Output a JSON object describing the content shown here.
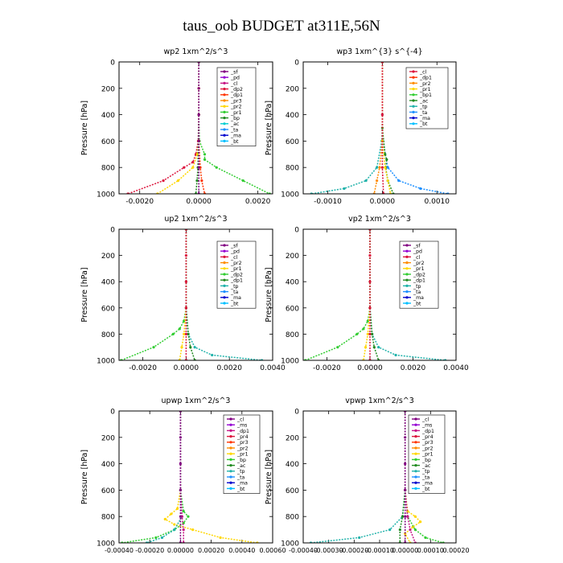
{
  "figure": {
    "title": "taus_oob  BUDGET at311E,56N"
  },
  "chart_data": [
    {
      "type": "line",
      "title": "wp2   1xm^2/s^3",
      "ylabel": "Pressure  [hPa]",
      "xlim": [
        -0.0027,
        0.0025
      ],
      "ylim": [
        1000,
        0
      ],
      "xticks": [
        "-0.0020",
        "0.0000",
        "0.0020"
      ],
      "yticks": [
        "0",
        "200",
        "400",
        "600",
        "800",
        "1000"
      ],
      "legend": [
        "_sf",
        "_pd",
        "_cl",
        "_dp2",
        "_dp1",
        "_pr3",
        "_pr2",
        "_pr1",
        "_bp",
        "_ac",
        "_ta",
        "_ma",
        "_bt"
      ],
      "legend_colors": [
        "#800080",
        "#9400D3",
        "#C71585",
        "#DC143C",
        "#FF3300",
        "#FF8C00",
        "#FFD700",
        "#32CD32",
        "#228B22",
        "#00CED1",
        "#1E90FF",
        "#0000CD",
        "#00BFFF"
      ],
      "series": [
        {
          "name": "_pr1",
          "color": "#32CD32",
          "y": [
            0,
            200,
            400,
            600,
            700,
            740,
            800,
            900,
            1000
          ],
          "x": [
            0,
            0,
            0,
            2e-05,
            0.0002,
            0.0002,
            0.0006,
            0.0015,
            0.0024
          ]
        },
        {
          "name": "_dp2",
          "color": "#DC143C",
          "y": [
            0,
            200,
            400,
            600,
            700,
            760,
            800,
            900,
            1000
          ],
          "x": [
            0,
            0,
            0,
            -2e-05,
            -0.0001,
            -0.0002,
            -0.0005,
            -0.0012,
            -0.0024
          ]
        },
        {
          "name": "_pr2",
          "color": "#FFD700",
          "y": [
            0,
            200,
            400,
            600,
            700,
            800,
            900,
            1000
          ],
          "x": [
            0,
            0,
            0,
            0,
            -5e-05,
            -0.0002,
            -0.0007,
            -0.0014
          ]
        },
        {
          "name": "_dp1",
          "color": "#FF3300",
          "y": [
            0,
            200,
            400,
            600,
            800,
            900,
            1000
          ],
          "x": [
            0,
            0,
            0,
            0,
            5e-05,
            0.0001,
            0.0002
          ]
        },
        {
          "name": "_bp",
          "color": "#228B22",
          "y": [
            0,
            400,
            800,
            900,
            1000
          ],
          "x": [
            0,
            0,
            -3e-05,
            -6e-05,
            -0.0001
          ]
        },
        {
          "name": "_sf",
          "color": "#800080",
          "y": [
            0,
            200,
            400,
            600,
            800,
            1000
          ],
          "x": [
            0,
            0,
            0,
            0,
            0,
            0
          ]
        }
      ]
    },
    {
      "type": "line",
      "title": "wp3   1xm^{3} s^{-4}",
      "ylabel": "Pressure  [hPa]",
      "xlim": [
        -0.00145,
        0.00135
      ],
      "ylim": [
        1000,
        0
      ],
      "xticks": [
        "-0.0010",
        "0.0000",
        "0.0010"
      ],
      "yticks": [
        "0",
        "200",
        "400",
        "600",
        "800",
        "1000"
      ],
      "legend": [
        "_cl",
        "_dp1",
        "_pr2",
        "_pr1",
        "_bp1",
        "_ac",
        "_tp",
        "_ta",
        "_ma",
        "_bt"
      ],
      "legend_colors": [
        "#DC143C",
        "#FF3300",
        "#FF8C00",
        "#FFD700",
        "#32CD32",
        "#228B22",
        "#20B2AA",
        "#1E90FF",
        "#0000CD",
        "#00BFFF"
      ],
      "series": [
        {
          "name": "_ta",
          "color": "#1E90FF",
          "y": [
            0,
            400,
            600,
            800,
            900,
            960,
            1000
          ],
          "x": [
            0,
            0,
            1e-05,
            0.0001,
            0.0003,
            0.0007,
            0.0012
          ]
        },
        {
          "name": "_tp",
          "color": "#20B2AA",
          "y": [
            0,
            400,
            600,
            800,
            900,
            960,
            1000
          ],
          "x": [
            0,
            0,
            -1e-05,
            -0.0001,
            -0.0003,
            -0.0007,
            -0.0013
          ]
        },
        {
          "name": "_ac",
          "color": "#228B22",
          "y": [
            0,
            500,
            700,
            740,
            800,
            900,
            1000
          ],
          "x": [
            0,
            0,
            5e-05,
            8e-05,
            6e-05,
            0.0001,
            0.0002
          ]
        },
        {
          "name": "_pr2",
          "color": "#FF8C00",
          "y": [
            0,
            600,
            800,
            900,
            1000
          ],
          "x": [
            0,
            0,
            -5e-05,
            -0.0001,
            -0.00015
          ]
        },
        {
          "name": "_pr1",
          "color": "#FFD700",
          "y": [
            0,
            600,
            800,
            900,
            1000
          ],
          "x": [
            0,
            0,
            5e-05,
            0.0001,
            0.00015
          ]
        },
        {
          "name": "_cl",
          "color": "#DC143C",
          "y": [
            0,
            400,
            800,
            1000
          ],
          "x": [
            0,
            0,
            0,
            2e-05
          ]
        }
      ]
    },
    {
      "type": "line",
      "title": "up2   1xm^2/s^3",
      "ylabel": "Pressure  [hPa]",
      "xlim": [
        -0.0031,
        0.004
      ],
      "ylim": [
        1000,
        0
      ],
      "xticks": [
        "-0.0020",
        "0.0000",
        "0.0020",
        "0.0040"
      ],
      "yticks": [
        "0",
        "200",
        "400",
        "600",
        "800",
        "1000"
      ],
      "legend": [
        "_sf",
        "_pd",
        "_cl",
        "_pr2",
        "_pr1",
        "_dp2",
        "_dp1",
        "_tp",
        "_ta",
        "_ma",
        "_bt"
      ],
      "legend_colors": [
        "#800080",
        "#9400D3",
        "#DC143C",
        "#FF8C00",
        "#FFD700",
        "#32CD32",
        "#228B22",
        "#20B2AA",
        "#1E90FF",
        "#0000CD",
        "#00BFFF"
      ],
      "series": [
        {
          "name": "_dp2",
          "color": "#32CD32",
          "y": [
            0,
            400,
            600,
            700,
            760,
            800,
            900,
            1000
          ],
          "x": [
            0,
            0,
            0,
            -0.0001,
            -0.0003,
            -0.0006,
            -0.0015,
            -0.003
          ]
        },
        {
          "name": "_ta",
          "color": "#20B2AA",
          "y": [
            0,
            600,
            800,
            900,
            960,
            1000
          ],
          "x": [
            0,
            0,
            0.0001,
            0.0004,
            0.0012,
            0.0035
          ]
        },
        {
          "name": "_pr1",
          "color": "#FFD700",
          "y": [
            0,
            600,
            800,
            900,
            1000
          ],
          "x": [
            0,
            0,
            -0.0001,
            -0.0002,
            -0.0003
          ]
        },
        {
          "name": "_dp1",
          "color": "#228B22",
          "y": [
            0,
            600,
            800,
            900,
            1000
          ],
          "x": [
            0,
            0,
            0.0001,
            0.0002,
            0.0004
          ]
        },
        {
          "name": "_cl",
          "color": "#DC143C",
          "y": [
            0,
            200,
            400,
            600,
            800,
            1000
          ],
          "x": [
            0,
            0,
            0,
            0,
            0,
            0
          ]
        }
      ]
    },
    {
      "type": "line",
      "title": "vp2   1xm^2/s^3",
      "ylabel": "Pressure  [hPa]",
      "xlim": [
        -0.0031,
        0.004
      ],
      "ylim": [
        1000,
        0
      ],
      "xticks": [
        "-0.0020",
        "0.0000",
        "0.0020",
        "0.0040"
      ],
      "yticks": [
        "0",
        "200",
        "400",
        "600",
        "800",
        "1000"
      ],
      "legend": [
        "_sf",
        "_pd",
        "_cl",
        "_pr2",
        "_pr1",
        "_dp2",
        "_dp1",
        "_tp",
        "_ta",
        "_ma",
        "_bt"
      ],
      "legend_colors": [
        "#800080",
        "#9400D3",
        "#DC143C",
        "#FF8C00",
        "#FFD700",
        "#32CD32",
        "#228B22",
        "#20B2AA",
        "#1E90FF",
        "#0000CD",
        "#00BFFF"
      ],
      "series": [
        {
          "name": "_dp2",
          "color": "#32CD32",
          "y": [
            0,
            400,
            600,
            700,
            760,
            800,
            900,
            1000
          ],
          "x": [
            0,
            0,
            0,
            -0.0001,
            -0.0003,
            -0.0006,
            -0.0015,
            -0.003
          ]
        },
        {
          "name": "_ta",
          "color": "#20B2AA",
          "y": [
            0,
            600,
            800,
            900,
            960,
            1000
          ],
          "x": [
            0,
            0,
            0.0001,
            0.0004,
            0.0012,
            0.0035
          ]
        },
        {
          "name": "_pr1",
          "color": "#FFD700",
          "y": [
            0,
            600,
            800,
            900,
            1000
          ],
          "x": [
            0,
            0,
            -0.0001,
            -0.0002,
            -0.0003
          ]
        },
        {
          "name": "_dp1",
          "color": "#228B22",
          "y": [
            0,
            600,
            800,
            900,
            1000
          ],
          "x": [
            0,
            0,
            0.0001,
            0.0002,
            0.0004
          ]
        },
        {
          "name": "_cl",
          "color": "#DC143C",
          "y": [
            0,
            200,
            400,
            600,
            800,
            1000
          ],
          "x": [
            0,
            0,
            0,
            0,
            0,
            0
          ]
        }
      ]
    },
    {
      "type": "line",
      "title": "upwp   1xm^2/s^3",
      "ylabel": "Pressure  [hPa]",
      "xlim": [
        -0.0004,
        0.0006
      ],
      "ylim": [
        1000,
        0
      ],
      "xticks": [
        "-0.00040",
        "-0.00020",
        "0.00000",
        "0.00020",
        "0.00040",
        "0.00060"
      ],
      "yticks": [
        "0",
        "200",
        "400",
        "600",
        "800",
        "1000"
      ],
      "legend": [
        "_cl",
        "_ms",
        "_dp1",
        "_pr4",
        "_pr3",
        "_pr2",
        "_pr1",
        "_bp",
        "_ac",
        "_tp",
        "_ta",
        "_ma",
        "_bt"
      ],
      "legend_colors": [
        "#800080",
        "#9400D3",
        "#C71585",
        "#DC143C",
        "#FF3300",
        "#FF8C00",
        "#FFD700",
        "#32CD32",
        "#228B22",
        "#20B2AA",
        "#1E90FF",
        "#0000CD",
        "#00BFFF"
      ],
      "series": [
        {
          "name": "_pr2",
          "color": "#FFD700",
          "y": [
            0,
            600,
            740,
            780,
            820,
            860,
            900,
            960,
            1000
          ],
          "x": [
            0,
            0,
            -2e-05,
            -6e-05,
            -0.0001,
            -4e-05,
            8e-05,
            0.00026,
            0.0005
          ]
        },
        {
          "name": "_pr1",
          "color": "#32CD32",
          "y": [
            0,
            600,
            760,
            800,
            850,
            900,
            960,
            1000
          ],
          "x": [
            0,
            0,
            2e-05,
            5e-05,
            2e-05,
            -4e-05,
            -0.00016,
            -0.00038
          ]
        },
        {
          "name": "_tp",
          "color": "#20B2AA",
          "y": [
            0,
            600,
            800,
            900,
            960,
            1000
          ],
          "x": [
            0,
            0,
            1e-05,
            -4e-05,
            -0.00012,
            -0.00022
          ]
        },
        {
          "name": "_dp1",
          "color": "#C71585",
          "y": [
            0,
            600,
            800,
            900,
            1000
          ],
          "x": [
            0,
            0,
            1e-05,
            2e-05,
            2e-05
          ]
        },
        {
          "name": "_cl",
          "color": "#800080",
          "y": [
            0,
            200,
            400,
            600,
            800,
            1000
          ],
          "x": [
            0,
            0,
            0,
            0,
            0,
            0
          ]
        }
      ]
    },
    {
      "type": "line",
      "title": "vpwp   1xm^2/s^3",
      "ylabel": "Pressure  [hPa]",
      "xlim": [
        -0.0004,
        0.0002
      ],
      "ylim": [
        1000,
        0
      ],
      "xticks": [
        "-0.00040",
        "-0.00030",
        "-0.00020",
        "-0.00010",
        "0.00000",
        "0.00010",
        "0.00020"
      ],
      "yticks": [
        "0",
        "200",
        "400",
        "600",
        "800",
        "1000"
      ],
      "legend": [
        "_cl",
        "_ms",
        "_dp1",
        "_pr4",
        "_pr3",
        "_pr2",
        "_pr1",
        "_bp",
        "_ac",
        "_tp",
        "_ta",
        "_ma",
        "_bt"
      ],
      "legend_colors": [
        "#800080",
        "#9400D3",
        "#C71585",
        "#DC143C",
        "#FF3300",
        "#FF8C00",
        "#FFD700",
        "#32CD32",
        "#228B22",
        "#20B2AA",
        "#1E90FF",
        "#0000CD",
        "#00BFFF"
      ],
      "series": [
        {
          "name": "_ta",
          "color": "#20B2AA",
          "y": [
            0,
            600,
            800,
            900,
            960,
            1000
          ],
          "x": [
            0,
            0,
            -1e-05,
            -6e-05,
            -0.00018,
            -0.00037
          ]
        },
        {
          "name": "_pr2",
          "color": "#FFD700",
          "y": [
            0,
            600,
            760,
            800,
            840,
            880,
            930,
            1000
          ],
          "x": [
            0,
            0,
            1e-05,
            4e-05,
            6e-05,
            3e-05,
            0,
            2e-05
          ]
        },
        {
          "name": "_pr1",
          "color": "#32CD32",
          "y": [
            0,
            600,
            800,
            900,
            960,
            1000
          ],
          "x": [
            0,
            0,
            1e-05,
            4e-05,
            8e-05,
            0.00015
          ]
        },
        {
          "name": "_tp",
          "color": "#228B22",
          "y": [
            0,
            600,
            800,
            900,
            1000
          ],
          "x": [
            0,
            0,
            -1e-05,
            -2e-05,
            -2e-05
          ]
        },
        {
          "name": "_dp1",
          "color": "#C71585",
          "y": [
            0,
            600,
            800,
            900,
            1000
          ],
          "x": [
            0,
            0,
            1e-05,
            2e-05,
            4e-05
          ]
        },
        {
          "name": "_cl",
          "color": "#800080",
          "y": [
            0,
            200,
            400,
            600,
            800,
            1000
          ],
          "x": [
            0,
            0,
            0,
            0,
            0,
            0
          ]
        }
      ]
    }
  ]
}
